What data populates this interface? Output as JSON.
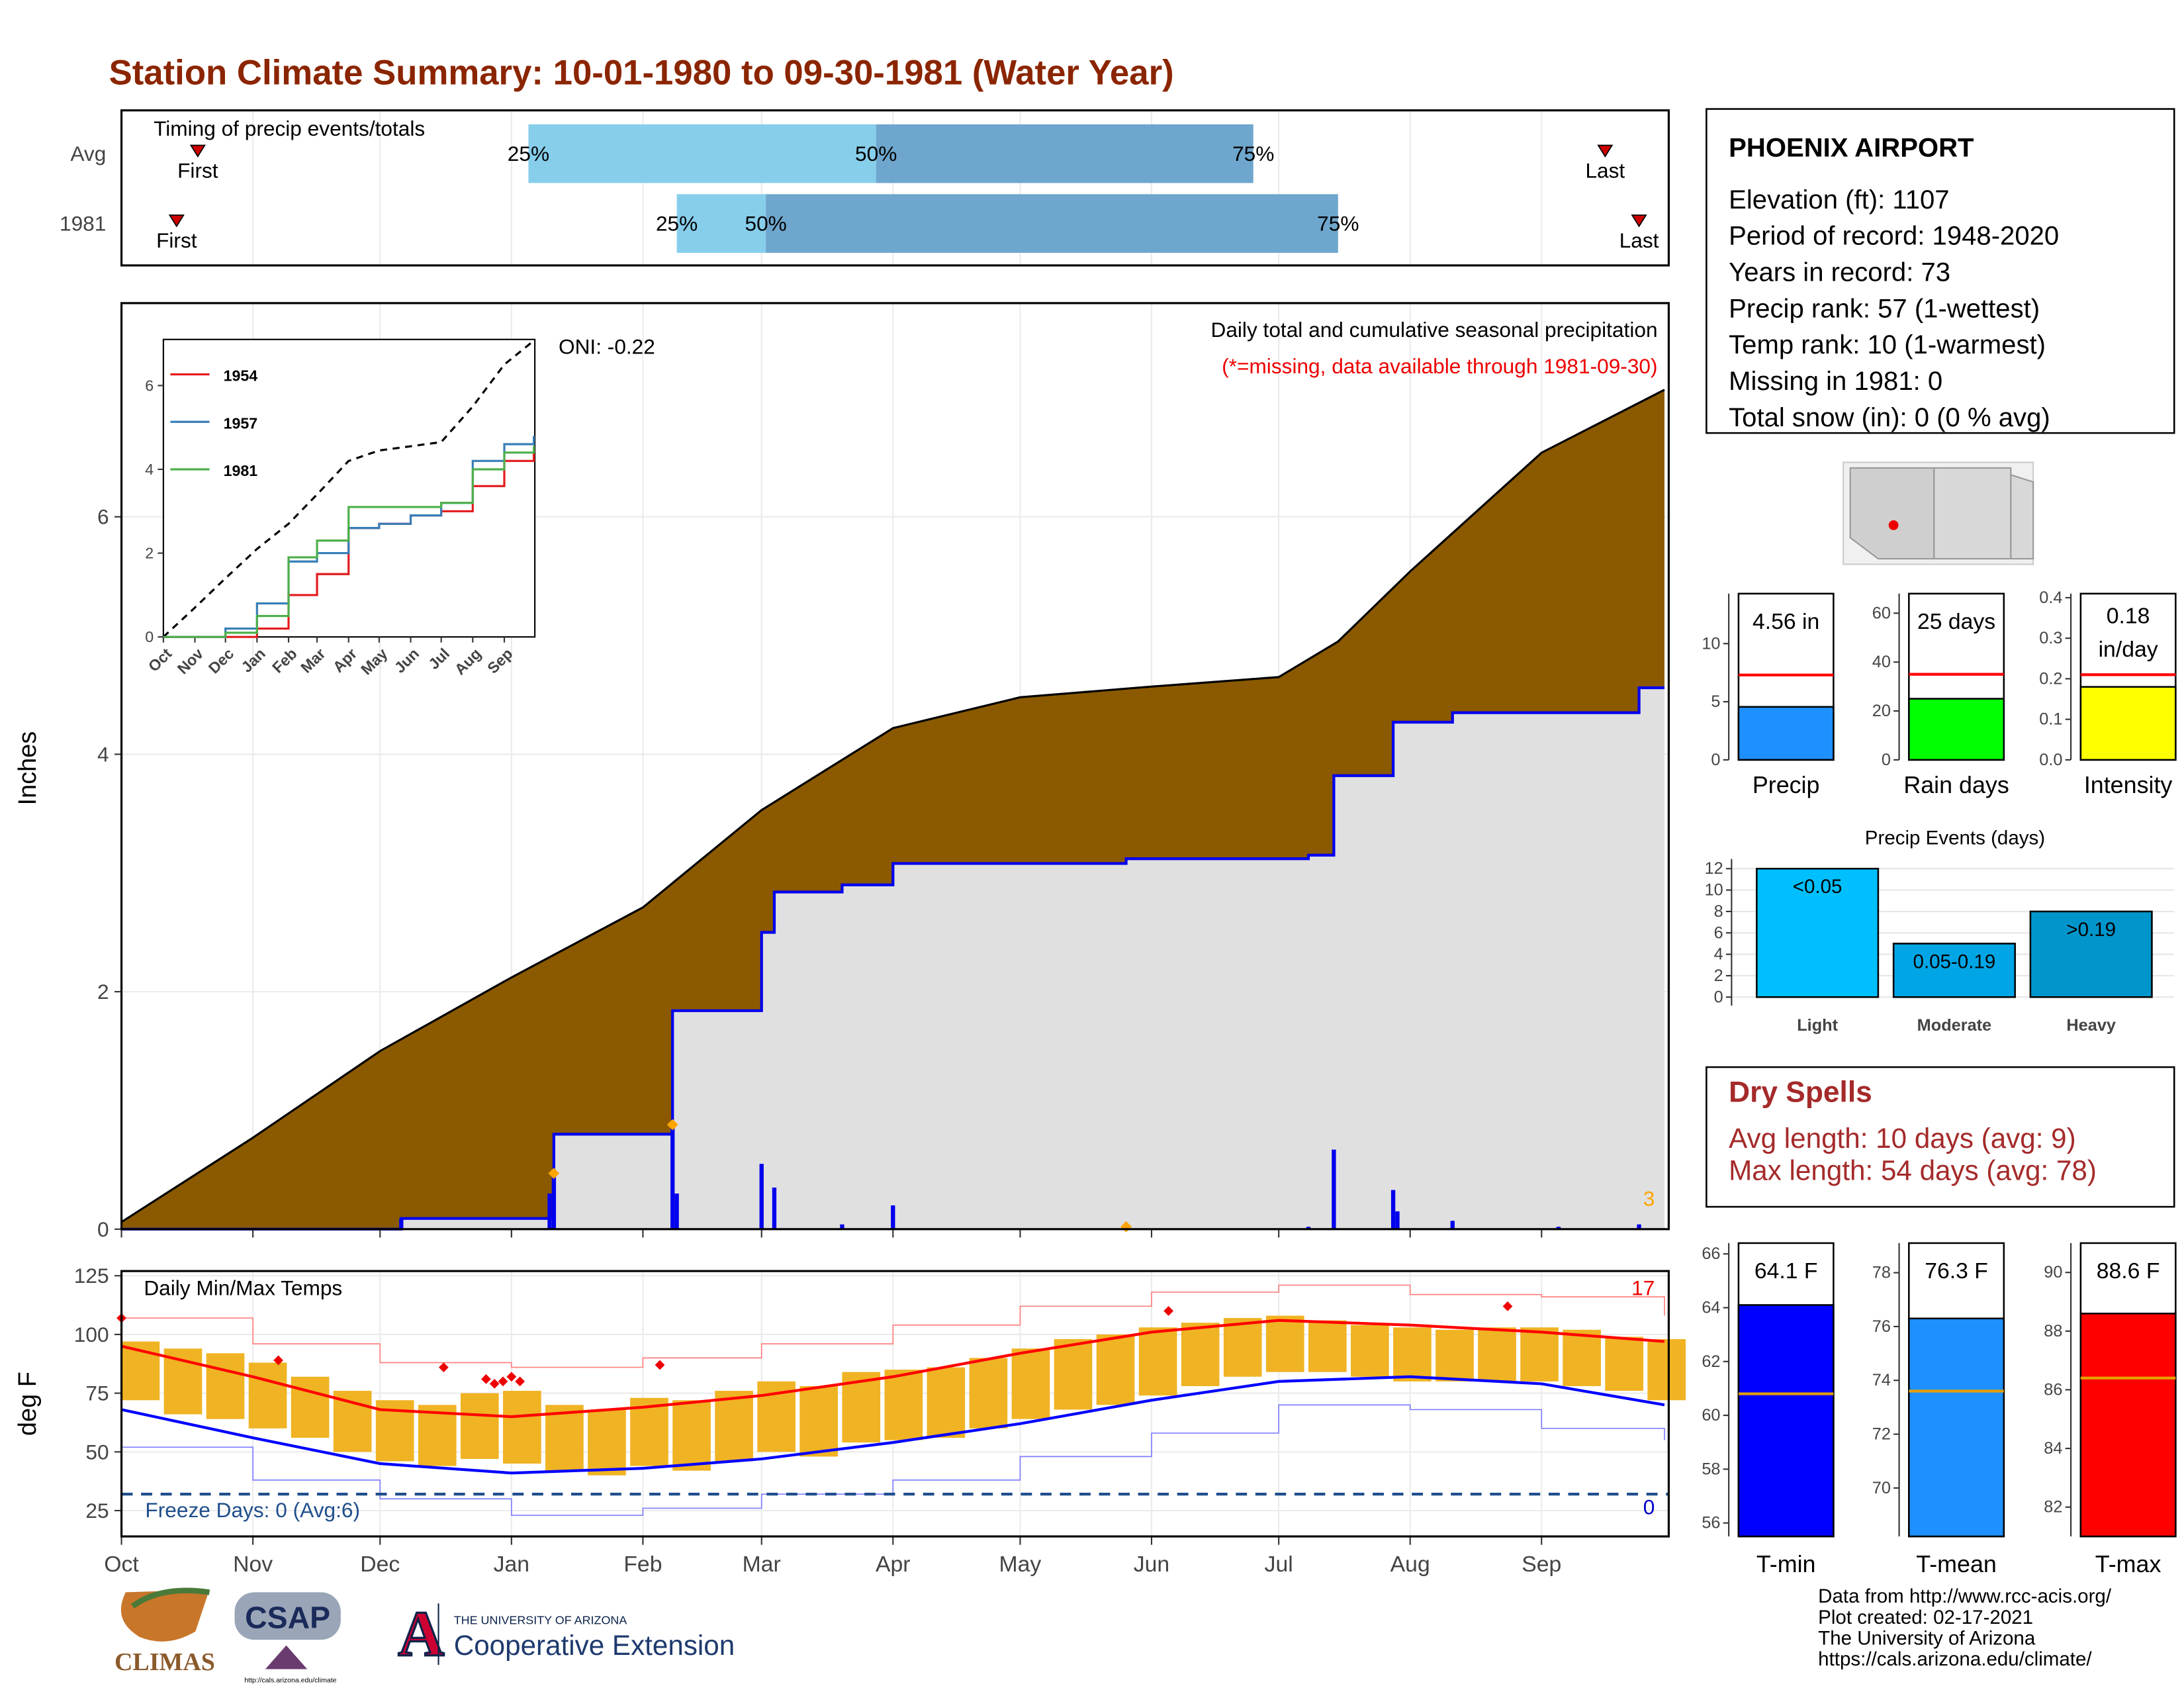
{
  "title": "Station Climate Summary: 10-01-1980 to 09-30-1981 (Water Year)",
  "chart_data": [
    {
      "type": "timing",
      "title": "Timing of precip events/totals",
      "xlim": [
        0,
        365
      ],
      "labels": [
        "First",
        "25%",
        "50%",
        "75%",
        "Last"
      ],
      "rows": [
        {
          "name": "Avg",
          "values": [
            18,
            96,
            178,
            267,
            350
          ]
        },
        {
          "name": "1981",
          "values": [
            13,
            131,
            152,
            287,
            358
          ]
        }
      ],
      "colors": [
        "#87ceeb",
        "#6ea6cd"
      ],
      "marker_color": "#cc0000"
    },
    {
      "type": "cumulative",
      "ylabel": "Inches",
      "xlim": [
        0,
        365
      ],
      "ylim": [
        0,
        7.8
      ],
      "yticks": [
        0,
        2,
        4,
        6
      ],
      "oni": "ONI: -0.22",
      "subtitle": "Daily total and cumulative seasonal precipitation",
      "note": "(*=missing, data available through 1981-09-30)",
      "count": "3",
      "average": {
        "color": "#8b5a00",
        "x": [
          0,
          31,
          61,
          92,
          123,
          151,
          182,
          212,
          243,
          273,
          287,
          304,
          335,
          364
        ],
        "values": [
          0.06,
          0.77,
          1.5,
          2.12,
          2.71,
          3.53,
          4.22,
          4.48,
          4.57,
          4.65,
          4.95,
          5.54,
          6.54,
          7.07
        ]
      },
      "year": {
        "color": "#0000ee",
        "x": [
          0,
          66,
          102,
          130,
          151,
          154,
          170,
          182,
          237,
          280,
          286,
          300,
          314,
          358,
          364
        ],
        "values": [
          0,
          0.09,
          0.8,
          1.84,
          2.5,
          2.84,
          2.9,
          3.08,
          3.12,
          3.15,
          3.82,
          4.27,
          4.35,
          4.56,
          4.56
        ]
      },
      "daily": {
        "color": "#0000ee",
        "x": [
          66,
          101,
          102,
          130,
          131,
          151,
          154,
          170,
          182,
          237,
          280,
          286,
          300,
          301,
          314,
          339,
          358
        ],
        "values": [
          0.09,
          0.3,
          0.45,
          0.85,
          0.3,
          0.55,
          0.35,
          0.04,
          0.2,
          0.02,
          0.02,
          0.67,
          0.33,
          0.15,
          0.07,
          0.02,
          0.04
        ]
      },
      "markers": {
        "color": "#ffa500",
        "x": [
          102,
          130,
          237
        ],
        "values": [
          0.47,
          0.88,
          0.02
        ]
      }
    },
    {
      "type": "line",
      "xlim": [
        0,
        365
      ],
      "ylim": [
        0,
        7.1
      ],
      "yticks": [
        0,
        2,
        4,
        6
      ],
      "xticks": [
        {
          "value": 0,
          "label": "Oct"
        },
        {
          "value": 31,
          "label": "Nov"
        },
        {
          "value": 61,
          "label": "Dec"
        },
        {
          "value": 92,
          "label": "Jan"
        },
        {
          "value": 123,
          "label": "Feb"
        },
        {
          "value": 151,
          "label": "Mar"
        },
        {
          "value": 182,
          "label": "Apr"
        },
        {
          "value": 212,
          "label": "May"
        },
        {
          "value": 243,
          "label": "Jun"
        },
        {
          "value": 273,
          "label": "Jul"
        },
        {
          "value": 304,
          "label": "Aug"
        },
        {
          "value": 335,
          "label": "Sep"
        }
      ],
      "x": [
        0,
        31,
        61,
        92,
        123,
        151,
        182,
        212,
        243,
        273,
        304,
        335,
        364
      ],
      "average": {
        "color": "#000000",
        "values": [
          0,
          0.7,
          1.4,
          2.1,
          2.7,
          3.4,
          4.2,
          4.45,
          4.55,
          4.65,
          5.5,
          6.5,
          7.07
        ]
      },
      "series": [
        {
          "name": "1954",
          "color": "#e41a1c",
          "values": [
            0,
            0,
            0,
            0.2,
            1.0,
            1.5,
            2.6,
            2.7,
            2.9,
            3.0,
            3.6,
            4.2,
            4.5
          ]
        },
        {
          "name": "1957",
          "color": "#377eb8",
          "values": [
            0,
            0,
            0.2,
            0.8,
            1.8,
            2.0,
            2.6,
            2.7,
            2.9,
            3.2,
            4.2,
            4.6,
            4.8
          ]
        },
        {
          "name": "1981",
          "color": "#4daf4a",
          "values": [
            0,
            0,
            0.1,
            0.5,
            1.9,
            2.3,
            3.1,
            3.1,
            3.1,
            3.2,
            4.0,
            4.4,
            4.56
          ]
        }
      ]
    },
    {
      "type": "temperature",
      "title": "Daily Min/Max Temps",
      "ylabel": "deg F",
      "xlim": [
        0,
        365
      ],
      "ylim": [
        14,
        127
      ],
      "yticks": [
        25,
        50,
        75,
        100,
        125
      ],
      "xticks": [
        {
          "value": 0,
          "label": "Oct"
        },
        {
          "value": 31,
          "label": "Nov"
        },
        {
          "value": 61,
          "label": "Dec"
        },
        {
          "value": 92,
          "label": "Jan"
        },
        {
          "value": 123,
          "label": "Feb"
        },
        {
          "value": 151,
          "label": "Mar"
        },
        {
          "value": 182,
          "label": "Apr"
        },
        {
          "value": 212,
          "label": "May"
        },
        {
          "value": 243,
          "label": "Jun"
        },
        {
          "value": 273,
          "label": "Jul"
        },
        {
          "value": 304,
          "label": "Aug"
        },
        {
          "value": 335,
          "label": "Sep"
        }
      ],
      "x": [
        0,
        31,
        61,
        92,
        123,
        151,
        182,
        212,
        243,
        273,
        304,
        335,
        364
      ],
      "normal_max": {
        "color": "#ff0000",
        "values": [
          95,
          82,
          68,
          65,
          69,
          74,
          82,
          92,
          101,
          106,
          104,
          101,
          97
        ]
      },
      "normal_min": {
        "color": "#0000ff",
        "values": [
          68,
          56,
          45,
          41,
          43,
          47,
          54,
          62,
          72,
          80,
          82,
          79,
          70
        ]
      },
      "record_max": {
        "color": "#ff8080",
        "values": [
          107,
          96,
          88,
          86,
          90,
          96,
          104,
          112,
          118,
          121,
          117,
          116,
          108
        ]
      },
      "record_min": {
        "color": "#8080ff",
        "values": [
          52,
          38,
          30,
          23,
          26,
          32,
          38,
          48,
          58,
          70,
          68,
          60,
          55
        ]
      },
      "daily": {
        "color": "#f0b323",
        "x": [
          0,
          10,
          20,
          30,
          40,
          50,
          60,
          70,
          80,
          90,
          100,
          110,
          120,
          130,
          140,
          150,
          160,
          170,
          180,
          190,
          200,
          210,
          220,
          230,
          240,
          250,
          260,
          270,
          280,
          290,
          300,
          310,
          320,
          330,
          340,
          350,
          360
        ],
        "highs": [
          97,
          94,
          92,
          88,
          82,
          76,
          72,
          70,
          75,
          76,
          70,
          68,
          73,
          72,
          76,
          80,
          78,
          84,
          85,
          86,
          90,
          94,
          98,
          100,
          103,
          105,
          107,
          108,
          106,
          104,
          103,
          102,
          103,
          103,
          102,
          99,
          98
        ],
        "lows": [
          72,
          66,
          64,
          60,
          56,
          50,
          46,
          44,
          47,
          45,
          42,
          40,
          44,
          42,
          46,
          50,
          48,
          54,
          55,
          56,
          60,
          64,
          68,
          70,
          74,
          78,
          82,
          84,
          84,
          82,
          80,
          80,
          80,
          80,
          78,
          76,
          72
        ]
      },
      "record_highs": {
        "color": "#ee0000",
        "x": [
          0,
          37,
          76,
          86,
          88,
          90,
          92,
          94,
          127,
          247,
          327
        ],
        "values": [
          107,
          89,
          86,
          81,
          79,
          80,
          82,
          80,
          87,
          110,
          112
        ]
      },
      "freeze": {
        "value": 32,
        "label": "Freeze Days: 0 (Avg:6)",
        "color": "#1f4e8c"
      },
      "count_high": "17",
      "count_low": "0"
    },
    {
      "type": "summary_bar",
      "category": "Precip",
      "value": 4.56,
      "value_labels": [
        "4.56 in"
      ],
      "average": 7.3,
      "color": "#1e90ff",
      "avg_color": "#ff0000",
      "ylim": [
        0,
        14.3
      ],
      "yticks": [
        0,
        5,
        10
      ]
    },
    {
      "type": "summary_bar",
      "category": "Rain days",
      "value": 25,
      "value_labels": [
        "25 days"
      ],
      "average": 35,
      "color": "#00ff00",
      "avg_color": "#ff0000",
      "ylim": [
        0,
        68
      ],
      "yticks": [
        0,
        20,
        40,
        60
      ]
    },
    {
      "type": "summary_bar",
      "category": "Intensity",
      "value": 0.18,
      "value_labels": [
        "0.18",
        "in/day"
      ],
      "average": 0.21,
      "color": "#ffff00",
      "avg_color": "#ff0000",
      "ylim": [
        0,
        0.41
      ],
      "yticks": [
        {
          "value": 0,
          "label": "0.0"
        },
        0.1,
        0.2,
        0.3,
        0.4
      ]
    },
    {
      "type": "bar",
      "title": "Precip Events (days)",
      "categories": [
        "Light",
        "Moderate",
        "Heavy"
      ],
      "values": [
        12,
        5,
        8
      ],
      "value_labels": [
        "<0.05",
        "0.05-0.19",
        ">0.19"
      ],
      "colors": [
        "#00bfff",
        "#00a5e6",
        "#0096cc"
      ],
      "ylim": [
        -0.8,
        12.9
      ],
      "yticks": [
        0,
        2,
        4,
        6,
        8,
        10,
        12
      ]
    },
    {
      "type": "summary_bar",
      "category": "T-min",
      "value": 64.1,
      "value_labels": [
        "64.1 F"
      ],
      "average": 60.8,
      "color": "#0000ff",
      "avg_color": "#e69f00",
      "ylim": [
        55.5,
        66.4
      ],
      "yticks": [
        56,
        58,
        60,
        62,
        64,
        66
      ]
    },
    {
      "type": "summary_bar",
      "category": "T-mean",
      "value": 76.3,
      "value_labels": [
        "76.3 F"
      ],
      "average": 73.6,
      "color": "#1e90ff",
      "avg_color": "#e69f00",
      "ylim": [
        68.2,
        79.1
      ],
      "yticks": [
        70,
        72,
        74,
        76,
        78
      ]
    },
    {
      "type": "summary_bar",
      "category": "T-max",
      "value": 88.6,
      "value_labels": [
        "88.6 F"
      ],
      "average": 86.4,
      "color": "#ff0000",
      "avg_color": "#e69f00",
      "ylim": [
        81,
        91
      ],
      "yticks": [
        82,
        84,
        86,
        88,
        90
      ]
    }
  ],
  "station": {
    "name": "PHOENIX AIRPORT",
    "lines": [
      "Elevation (ft): 1107",
      "Period of record: 1948-2020",
      "Years in record: 73",
      "Precip rank: 57 (1-wettest)",
      "Temp rank: 10 (1-warmest)",
      "Missing in 1981: 0",
      "Total snow (in): 0 (0 % avg)"
    ]
  },
  "dry_spells": {
    "title": "Dry Spells",
    "lines": [
      "Avg length: 10 days (avg: 9)",
      "Max length: 54 days (avg: 78)"
    ]
  },
  "footer": [
    "Data from http://www.rcc-acis.org/",
    "Plot created: 02-17-2021",
    "The University of Arizona",
    "https://cals.arizona.edu/climate/"
  ],
  "logos": {
    "climas": "CLIMAS",
    "csap": "CSAP",
    "csap_url": "http://cals.arizona.edu/climate",
    "ua": "A",
    "ua_name": "THE UNIVERSITY OF ARIZONA",
    "extension": "Cooperative Extension"
  }
}
